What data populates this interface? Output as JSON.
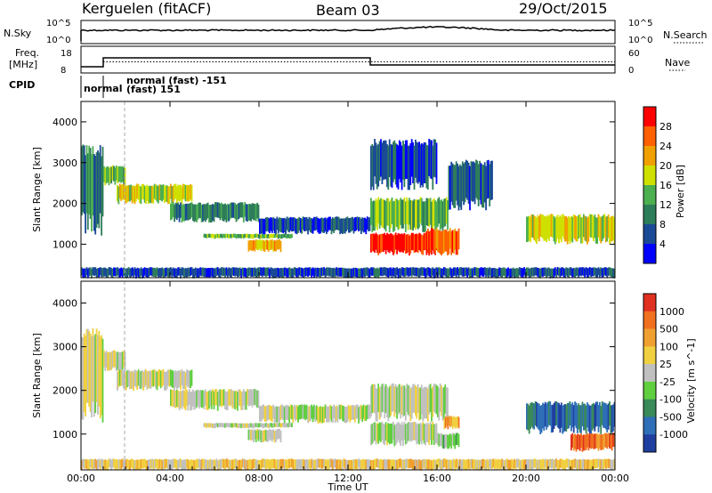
{
  "header": {
    "station": "Kerguelen (fitACF)",
    "beam": "Beam 03",
    "date": "29/Oct/2015"
  },
  "nsky_panel": {
    "left_label": "N.Sky",
    "left_ticks": [
      "10^5",
      "10^0"
    ],
    "right_ticks": [
      "10^5",
      "10^0"
    ],
    "right_label": "N.Search",
    "right_legend_style": "dotted"
  },
  "freq_panel": {
    "left_label_line1": "Freq.",
    "left_label_line2": "[MHz]",
    "left_ticks": [
      "18",
      "8"
    ],
    "right_ticks": [
      "60",
      "0"
    ],
    "right_label": "Nave",
    "right_legend_style": "dotted",
    "freq_steps": [
      {
        "t0": 0.0,
        "t1": 1.0,
        "value": 9.5
      },
      {
        "t0": 1.0,
        "t1": 13.0,
        "value": 14.5
      },
      {
        "t0": 13.0,
        "t1": 24.0,
        "value": 10.5
      }
    ],
    "nave_level": 0.55
  },
  "cpid": {
    "label": "CPID",
    "segments": [
      {
        "t0": 0.0,
        "t1": 1.0,
        "text": "normal"
      },
      {
        "t0": 1.0,
        "t1": 13.0,
        "text_line1": "normal (fast) -151",
        "text_line2": "(fast) 151"
      }
    ]
  },
  "time_axis": {
    "label": "Time UT",
    "ticks": [
      "00:00",
      "04:00",
      "08:00",
      "12:00",
      "16:00",
      "20:00",
      "00:00"
    ],
    "tick_hours": [
      0,
      4,
      8,
      12,
      16,
      20,
      24
    ]
  },
  "power_panel": {
    "ylabel": "Slant Range [km]",
    "yticks": [
      "1000",
      "2000",
      "3000",
      "4000"
    ],
    "colorbar_label": "Power [dB]",
    "colorbar_ticks": [
      "4",
      "8",
      "12",
      "16",
      "20",
      "24",
      "28"
    ],
    "colors": [
      "#0000ff",
      "#1a4a96",
      "#2e7d5a",
      "#4caf50",
      "#cfe000",
      "#f0a000",
      "#ff6000",
      "#ff0000"
    ]
  },
  "velocity_panel": {
    "ylabel": "Slant Range [km]",
    "yticks": [
      "1000",
      "2000",
      "3000",
      "4000"
    ],
    "colorbar_label": "Velocity [m s^-1]",
    "colorbar_ticks": [
      "1000",
      "500",
      "100",
      "25",
      "-25",
      "-100",
      "-500",
      "-1000"
    ],
    "colors": [
      "#1f3fa0",
      "#2f6fb8",
      "#3a8a5a",
      "#5fcf3f",
      "#c0c0c0",
      "#f0d040",
      "#f0a030",
      "#f07020",
      "#e03020"
    ]
  },
  "chart_data": {
    "type": "heatmap",
    "x_range_hours": [
      0,
      24
    ],
    "y_range_km": [
      180,
      4500
    ],
    "power_bands": [
      {
        "t0": 0.0,
        "t1": 1.0,
        "r0": 1500,
        "r1": 3300,
        "level": 2
      },
      {
        "t0": 1.0,
        "t1": 2.0,
        "r0": 2500,
        "r1": 2900,
        "level": 3
      },
      {
        "t0": 1.6,
        "t1": 5.0,
        "r0": 2050,
        "r1": 2450,
        "level": 4
      },
      {
        "t0": 4.0,
        "t1": 8.0,
        "r0": 1600,
        "r1": 2000,
        "level": 2
      },
      {
        "t0": 5.5,
        "t1": 9.5,
        "r0": 1150,
        "r1": 1250,
        "level": 3
      },
      {
        "t0": 7.5,
        "t1": 9.0,
        "r0": 850,
        "r1": 1100,
        "level": 5
      },
      {
        "t0": 8.0,
        "t1": 13.0,
        "r0": 1300,
        "r1": 1650,
        "level": 1
      },
      {
        "t0": 13.0,
        "t1": 16.0,
        "r0": 800,
        "r1": 1250,
        "level": 7
      },
      {
        "t0": 13.0,
        "t1": 16.5,
        "r0": 1400,
        "r1": 2100,
        "level": 3
      },
      {
        "t0": 13.0,
        "t1": 16.0,
        "r0": 2500,
        "r1": 3500,
        "level": 1
      },
      {
        "t0": 15.5,
        "t1": 17.0,
        "r0": 800,
        "r1": 1350,
        "level": 6
      },
      {
        "t0": 16.5,
        "t1": 18.5,
        "r0": 2000,
        "r1": 3000,
        "level": 1
      },
      {
        "t0": 20.0,
        "t1": 24.0,
        "r0": 1100,
        "r1": 1700,
        "level": 4
      },
      {
        "t0": 0.0,
        "t1": 24.0,
        "r0": 200,
        "r1": 420,
        "level": 1
      }
    ],
    "velocity_bands": [
      {
        "t0": 0.0,
        "t1": 1.0,
        "r0": 1500,
        "r1": 3300,
        "level": 4
      },
      {
        "t0": 1.0,
        "t1": 2.0,
        "r0": 2500,
        "r1": 2900,
        "level": 4
      },
      {
        "t0": 1.6,
        "t1": 5.0,
        "r0": 2050,
        "r1": 2450,
        "level": 4
      },
      {
        "t0": 4.0,
        "t1": 8.0,
        "r0": 1600,
        "r1": 2000,
        "level": 4
      },
      {
        "t0": 5.5,
        "t1": 9.5,
        "r0": 1150,
        "r1": 1250,
        "level": 4
      },
      {
        "t0": 7.5,
        "t1": 9.0,
        "r0": 850,
        "r1": 1100,
        "level": 4
      },
      {
        "t0": 8.0,
        "t1": 13.0,
        "r0": 1300,
        "r1": 1650,
        "level": 4
      },
      {
        "t0": 13.0,
        "t1": 16.0,
        "r0": 800,
        "r1": 1250,
        "level": 4
      },
      {
        "t0": 13.0,
        "t1": 16.5,
        "r0": 1400,
        "r1": 2100,
        "level": 4
      },
      {
        "t0": 16.0,
        "t1": 17.0,
        "r0": 700,
        "r1": 1000,
        "level": 3
      },
      {
        "t0": 16.3,
        "t1": 17.0,
        "r0": 1150,
        "r1": 1400,
        "level": 6
      },
      {
        "t0": 20.0,
        "t1": 24.0,
        "r0": 1100,
        "r1": 1700,
        "level": 1
      },
      {
        "t0": 22.0,
        "t1": 24.0,
        "r0": 650,
        "r1": 1000,
        "level": 7
      },
      {
        "t0": 0.0,
        "t1": 24.0,
        "r0": 200,
        "r1": 420,
        "level": 5
      }
    ]
  }
}
